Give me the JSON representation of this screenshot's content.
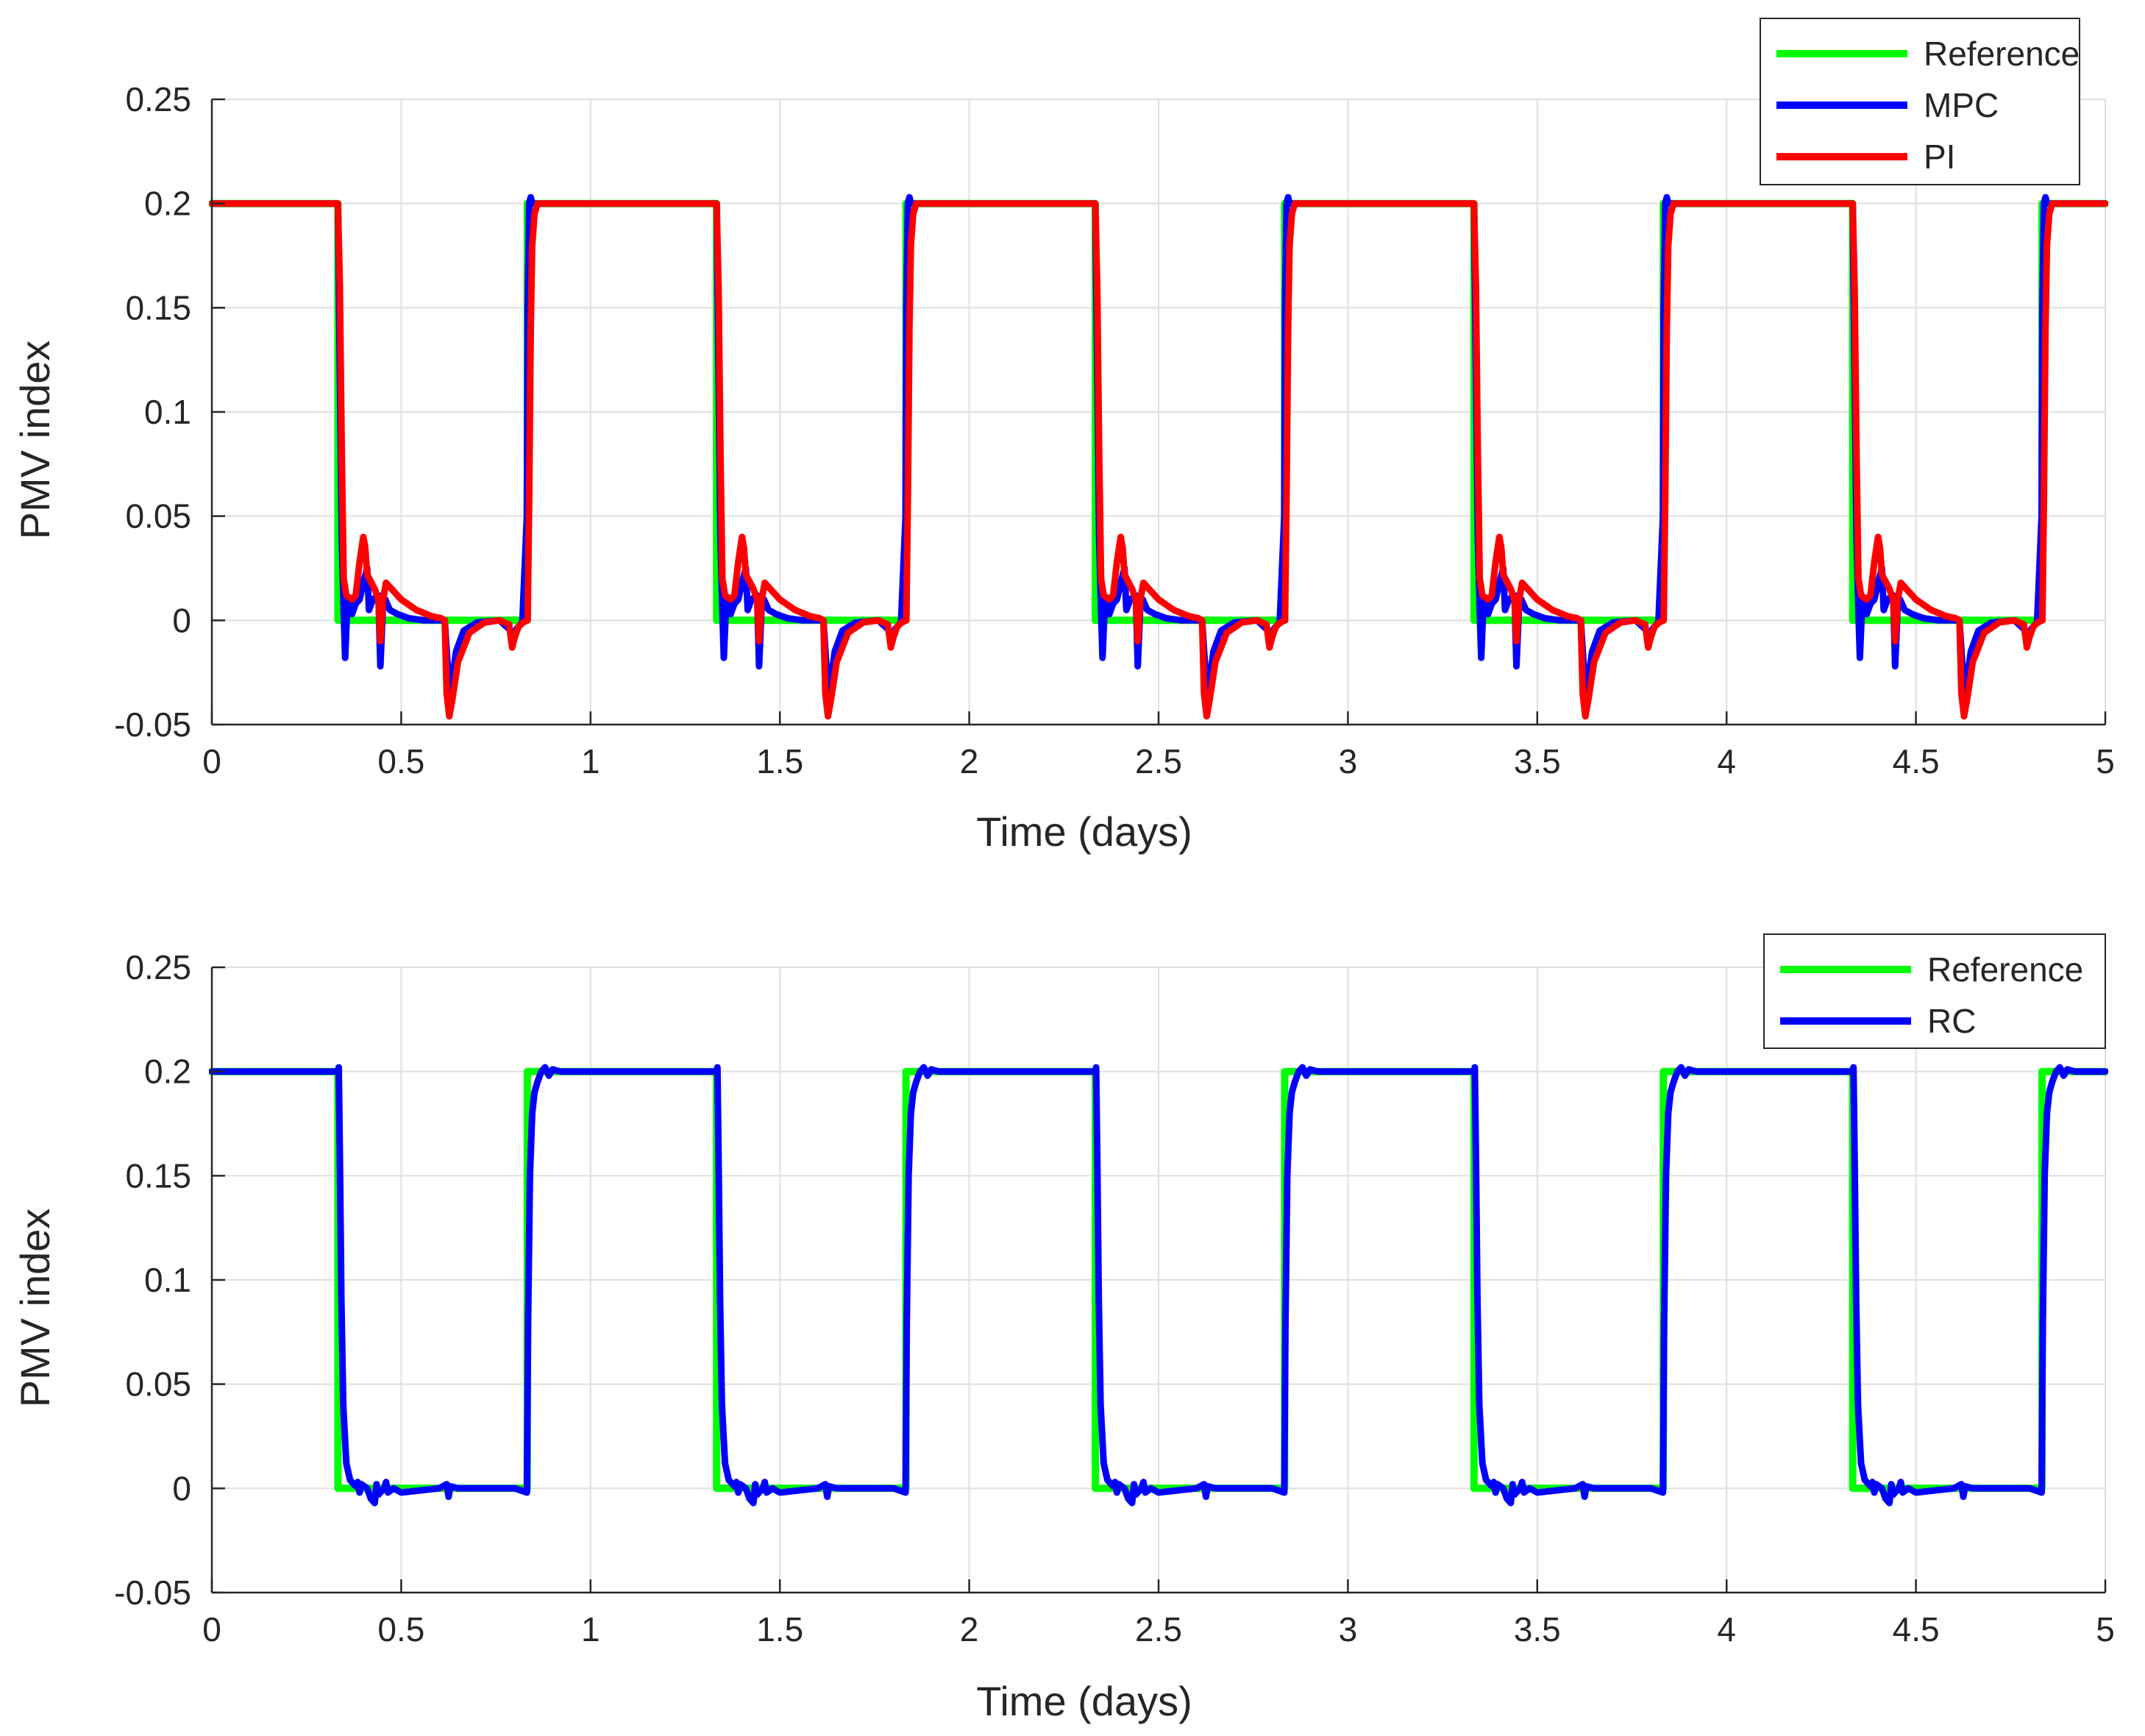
{
  "chart_data": [
    {
      "type": "line",
      "title": "",
      "xlabel": "Time (days)",
      "ylabel": "PMV index",
      "xlim": [
        0,
        5
      ],
      "ylim": [
        -0.05,
        0.25
      ],
      "xticks": [
        0,
        0.5,
        1,
        1.5,
        2,
        2.5,
        3,
        3.5,
        4,
        4.5,
        5
      ],
      "yticks": [
        -0.05,
        0,
        0.05,
        0.1,
        0.15,
        0.2,
        0.25
      ],
      "xtick_labels": [
        "0",
        "0.5",
        "1",
        "1.5",
        "2",
        "2.5",
        "3",
        "3.5",
        "4",
        "4.5",
        "5"
      ],
      "ytick_labels": [
        "-0.05",
        "0",
        "0.05",
        "0.1",
        "0.15",
        "0.2",
        "0.25"
      ],
      "grid": true,
      "legend_position": "top-right",
      "series": [
        {
          "name": "Reference",
          "color": "#00ff00",
          "x": [
            0,
            0.333,
            0.333,
            0.833,
            0.833,
            1.333,
            1.333,
            1.833,
            1.833,
            2.333,
            2.333,
            2.833,
            2.833,
            3.333,
            3.333,
            3.833,
            3.833,
            4.333,
            4.333,
            4.833,
            4.833,
            5
          ],
          "y": [
            0.2,
            0.2,
            0,
            0,
            0.2,
            0.2,
            0,
            0,
            0.2,
            0.2,
            0,
            0,
            0.2,
            0.2,
            0,
            0,
            0.2,
            0.2,
            0,
            0,
            0.2,
            0.2
          ]
        },
        {
          "name": "MPC",
          "color": "#0000ff",
          "x": [
            0,
            0.333,
            0.338,
            0.343,
            0.348,
            0.352,
            0.356,
            0.362,
            0.37,
            0.38,
            0.39,
            0.4,
            0.41,
            0.415,
            0.425,
            0.44,
            0.445,
            0.452,
            0.458,
            0.47,
            0.49,
            0.52,
            0.56,
            0.6,
            0.615,
            0.622,
            0.63,
            0.645,
            0.665,
            0.7,
            0.76,
            0.79,
            0.797,
            0.805,
            0.82,
            0.832,
            0.834,
            0.838,
            0.842,
            0.846,
            0.86,
            1
          ],
          "y": [
            0.2,
            0.2,
            0.12,
            0.04,
            0.005,
            -0.018,
            0,
            0.01,
            0.003,
            0.008,
            0.01,
            0.018,
            0.025,
            0.005,
            0.01,
            0.012,
            -0.022,
            0.008,
            0.01,
            0.005,
            0.003,
            0.001,
            0,
            0,
            0,
            -0.02,
            -0.035,
            -0.015,
            -0.005,
            -0.001,
            0,
            -0.005,
            -0.01,
            -0.004,
            -0.001,
            0.05,
            0.15,
            0.2,
            0.203,
            0.2,
            0.2,
            0.2
          ]
        },
        {
          "name": "PI",
          "color": "#ff0000",
          "x": [
            0,
            0.333,
            0.338,
            0.343,
            0.348,
            0.355,
            0.37,
            0.38,
            0.39,
            0.4,
            0.405,
            0.41,
            0.43,
            0.44,
            0.445,
            0.452,
            0.46,
            0.475,
            0.5,
            0.54,
            0.58,
            0.605,
            0.615,
            0.62,
            0.627,
            0.635,
            0.65,
            0.68,
            0.72,
            0.76,
            0.785,
            0.793,
            0.8,
            0.81,
            0.822,
            0.834,
            0.838,
            0.842,
            0.846,
            0.852,
            0.86,
            1
          ],
          "y": [
            0.2,
            0.2,
            0.16,
            0.08,
            0.02,
            0.012,
            0.01,
            0.012,
            0.028,
            0.04,
            0.035,
            0.022,
            0.015,
            0.01,
            -0.01,
            0.01,
            0.018,
            0.015,
            0.01,
            0.005,
            0.002,
            0.001,
            0,
            -0.035,
            -0.046,
            -0.038,
            -0.02,
            -0.006,
            -0.001,
            0,
            -0.002,
            -0.013,
            -0.008,
            -0.003,
            -0.001,
            0,
            0.06,
            0.14,
            0.18,
            0.195,
            0.2,
            0.2
          ]
        }
      ]
    },
    {
      "type": "line",
      "title": "",
      "xlabel": "Time (days)",
      "ylabel": "PMV index",
      "xlim": [
        0,
        5
      ],
      "ylim": [
        -0.05,
        0.25
      ],
      "xticks": [
        0,
        0.5,
        1,
        1.5,
        2,
        2.5,
        3,
        3.5,
        4,
        4.5,
        5
      ],
      "yticks": [
        -0.05,
        0,
        0.05,
        0.1,
        0.15,
        0.2,
        0.25
      ],
      "xtick_labels": [
        "0",
        "0.5",
        "1",
        "1.5",
        "2",
        "2.5",
        "3",
        "3.5",
        "4",
        "4.5",
        "5"
      ],
      "ytick_labels": [
        "-0.05",
        "0",
        "0.05",
        "0.1",
        "0.15",
        "0.2",
        "0.25"
      ],
      "grid": true,
      "legend_position": "top-right",
      "series": [
        {
          "name": "Reference",
          "color": "#00ff00",
          "x": [
            0,
            0.333,
            0.333,
            0.833,
            0.833,
            1.333,
            1.333,
            1.833,
            1.833,
            2.333,
            2.333,
            2.833,
            2.833,
            3.333,
            3.333,
            3.833,
            3.833,
            4.333,
            4.333,
            4.833,
            4.833,
            5
          ],
          "y": [
            0.2,
            0.2,
            0,
            0,
            0.2,
            0.2,
            0,
            0,
            0.2,
            0.2,
            0,
            0,
            0.2,
            0.2,
            0,
            0,
            0.2,
            0.2,
            0,
            0,
            0.2,
            0.2
          ]
        },
        {
          "name": "RC",
          "color": "#0000ff",
          "x": [
            0,
            0.333,
            0.335,
            0.338,
            0.342,
            0.347,
            0.355,
            0.365,
            0.38,
            0.385,
            0.39,
            0.395,
            0.41,
            0.42,
            0.43,
            0.435,
            0.44,
            0.455,
            0.46,
            0.465,
            0.48,
            0.5,
            0.55,
            0.6,
            0.62,
            0.625,
            0.63,
            0.65,
            0.7,
            0.76,
            0.8,
            0.832,
            0.835,
            0.84,
            0.846,
            0.852,
            0.86,
            0.87,
            0.88,
            0.89,
            0.9,
            0.92,
            1
          ],
          "y": [
            0.2,
            0.2,
            0.202,
            0.16,
            0.09,
            0.04,
            0.012,
            0.004,
            0.001,
            0.003,
            -0.002,
            0.002,
            0,
            -0.005,
            -0.007,
            0.002,
            -0.003,
            0,
            0.003,
            -0.002,
            0,
            -0.002,
            -0.001,
            0,
            0.002,
            -0.004,
            0.001,
            0,
            0,
            0,
            0,
            -0.002,
            0.08,
            0.15,
            0.18,
            0.19,
            0.195,
            0.2,
            0.202,
            0.198,
            0.201,
            0.2,
            0.2
          ]
        }
      ]
    }
  ]
}
